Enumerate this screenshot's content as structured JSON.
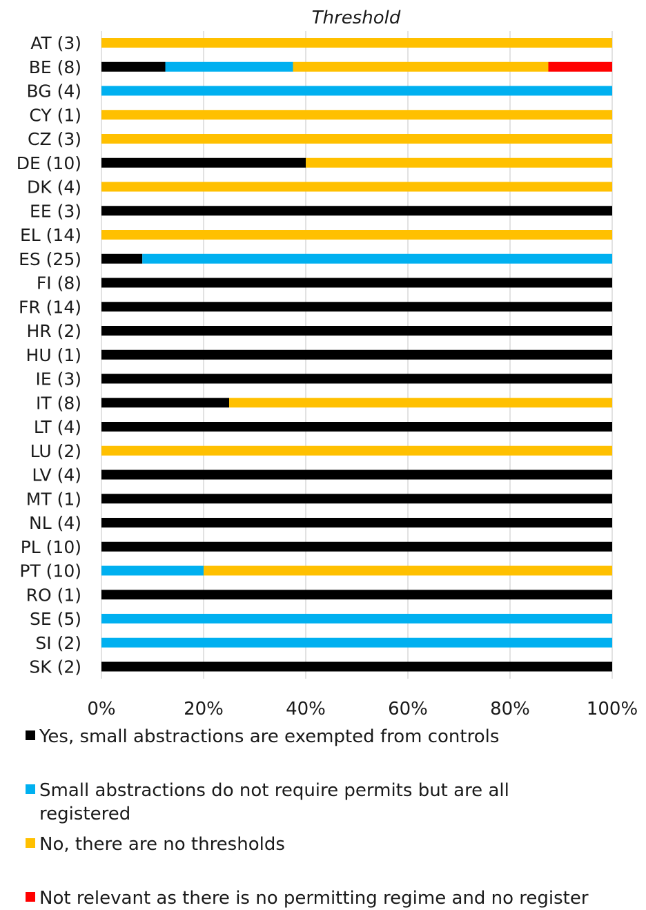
{
  "chart_data": {
    "type": "bar",
    "orientation": "horizontal",
    "stacked": "percent",
    "title": "Threshold",
    "categories": [
      "AT (3)",
      "BE (8)",
      "BG (4)",
      "CY (1)",
      "CZ (3)",
      "DE (10)",
      "DK (4)",
      "EE (3)",
      "EL (14)",
      "ES (25)",
      "FI (8)",
      "FR (14)",
      "HR (2)",
      "HU (1)",
      "IE (3)",
      "IT (8)",
      "LT (4)",
      "LU (2)",
      "LV (4)",
      "MT (1)",
      "NL (4)",
      "PL (10)",
      "PT (10)",
      "RO (1)",
      "SE (5)",
      "SI (2)",
      "SK (2)"
    ],
    "series": [
      {
        "name": "Yes, small abstractions are exempted from controls",
        "color": "#000000",
        "values": [
          0,
          12.5,
          0,
          0,
          0,
          40,
          0,
          100,
          0,
          8,
          100,
          100,
          100,
          100,
          100,
          25,
          100,
          0,
          100,
          100,
          100,
          100,
          0,
          100,
          0,
          0,
          100
        ]
      },
      {
        "name": "Small abstractions do not require permits but are all registered",
        "color": "#00B0F0",
        "values": [
          0,
          25,
          100,
          0,
          0,
          0,
          0,
          0,
          0,
          92,
          0,
          0,
          0,
          0,
          0,
          0,
          0,
          0,
          0,
          0,
          0,
          0,
          20,
          0,
          100,
          100,
          0
        ]
      },
      {
        "name": "No, there are no thresholds",
        "color": "#FFC000",
        "values": [
          100,
          50,
          0,
          100,
          100,
          60,
          100,
          0,
          100,
          0,
          0,
          0,
          0,
          0,
          0,
          75,
          0,
          100,
          0,
          0,
          0,
          0,
          80,
          0,
          0,
          0,
          0
        ]
      },
      {
        "name": "Not relevant as there is no permitting regime and no register",
        "color": "#FF0000",
        "values": [
          0,
          12.5,
          0,
          0,
          0,
          0,
          0,
          0,
          0,
          0,
          0,
          0,
          0,
          0,
          0,
          0,
          0,
          0,
          0,
          0,
          0,
          0,
          0,
          0,
          0,
          0,
          0
        ]
      }
    ],
    "xlim": [
      0,
      100
    ],
    "x_ticks": [
      "0%",
      "20%",
      "40%",
      "60%",
      "80%",
      "100%"
    ],
    "grid": true,
    "legend_position": "bottom"
  }
}
